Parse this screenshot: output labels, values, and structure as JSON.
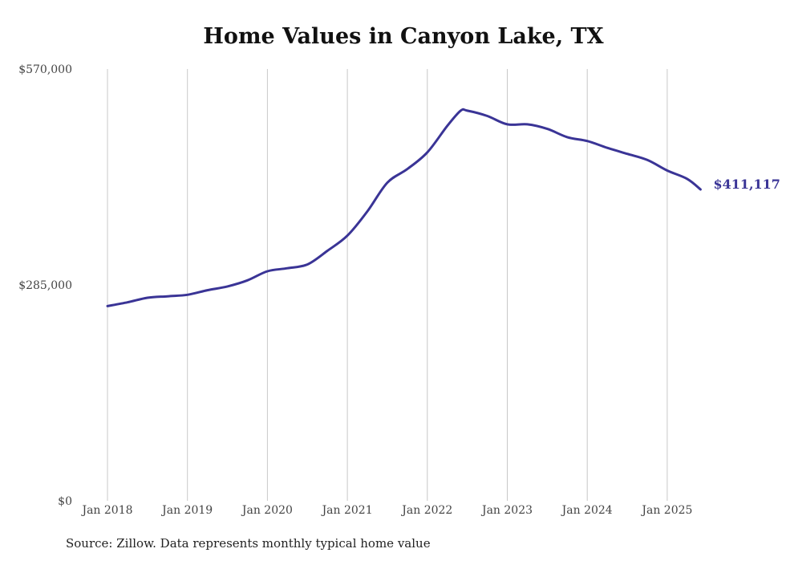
{
  "chart_data": {
    "type": "line",
    "title": "Home Values in Canyon Lake, TX",
    "source_note": "Source: Zillow. Data represents monthly typical home value",
    "y_tick_labels": [
      "$0",
      "$285,000",
      "$570,000"
    ],
    "x_tick_labels": [
      "Jan 2018",
      "Jan 2019",
      "Jan 2020",
      "Jan 2021",
      "Jan 2022",
      "Jan 2023",
      "Jan 2024",
      "Jan 2025"
    ],
    "ylim": [
      0,
      570000
    ],
    "xlim": [
      "2018-01",
      "2025-06"
    ],
    "grid": "vertical",
    "series_color": "#3a3496",
    "end_label": "$411,117",
    "series": [
      {
        "x": [
          "2018-01",
          "2018-04",
          "2018-07",
          "2018-10",
          "2019-01",
          "2019-04",
          "2019-07",
          "2019-10",
          "2020-01",
          "2020-04",
          "2020-07",
          "2020-10",
          "2021-01",
          "2021-04",
          "2021-07",
          "2021-10",
          "2022-01",
          "2022-04",
          "2022-06",
          "2022-07",
          "2022-10",
          "2023-01",
          "2023-04",
          "2023-07",
          "2023-10",
          "2024-01",
          "2024-04",
          "2024-07",
          "2024-10",
          "2025-01",
          "2025-04",
          "2025-06"
        ],
        "values": [
          257000,
          262000,
          268000,
          270000,
          272000,
          278000,
          283000,
          291000,
          303000,
          307000,
          312000,
          330000,
          350000,
          382000,
          420000,
          438000,
          460000,
          495000,
          515000,
          515000,
          508000,
          497000,
          497000,
          491000,
          480000,
          475000,
          466000,
          458000,
          450000,
          436000,
          425000,
          411117
        ]
      }
    ]
  }
}
